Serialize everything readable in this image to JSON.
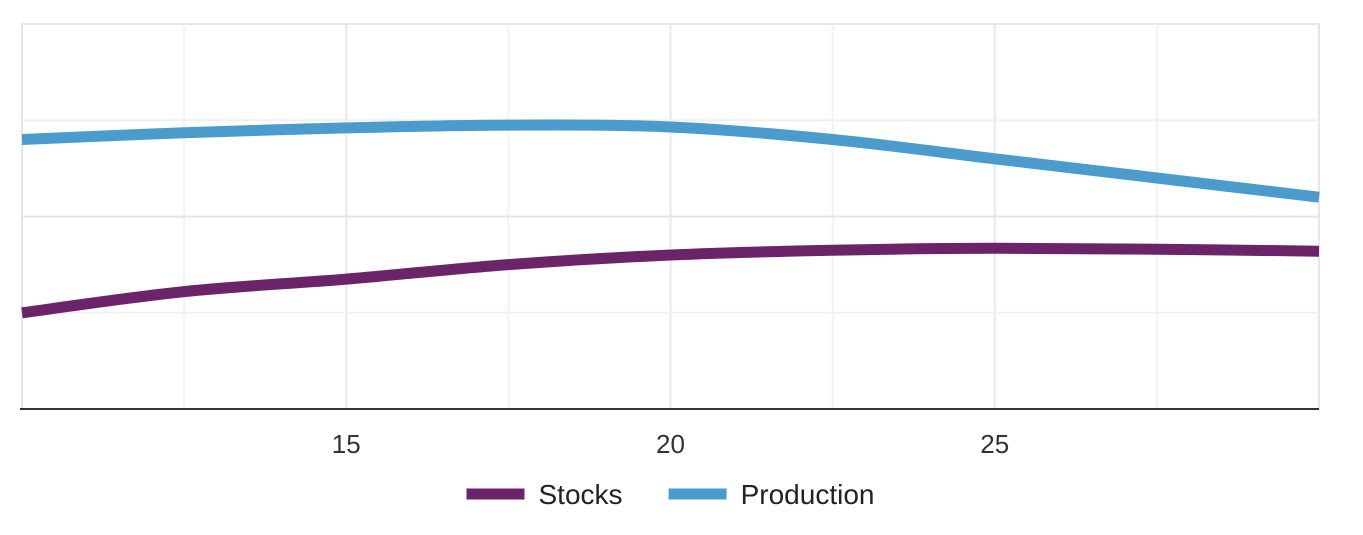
{
  "chart_data": {
    "type": "line",
    "x_ticks": [
      15,
      20,
      25
    ],
    "xlim": [
      10,
      30
    ],
    "ylim": [
      0,
      4
    ],
    "grid": true,
    "legend_position": "bottom-center",
    "series": [
      {
        "name": "Stocks",
        "color": "#6b2469",
        "x": [
          10,
          12.5,
          15,
          17.5,
          20,
          22.5,
          25,
          27.5,
          30
        ],
        "y": [
          1,
          1.22,
          1.35,
          1.5,
          1.6,
          1.65,
          1.67,
          1.66,
          1.64
        ]
      },
      {
        "name": "Production",
        "color": "#4b9bcc",
        "x": [
          10,
          12.5,
          15,
          17.5,
          20,
          22.5,
          25,
          27.5,
          30
        ],
        "y": [
          2.8,
          2.87,
          2.92,
          2.95,
          2.93,
          2.8,
          2.6,
          2.4,
          2.2
        ]
      }
    ]
  }
}
